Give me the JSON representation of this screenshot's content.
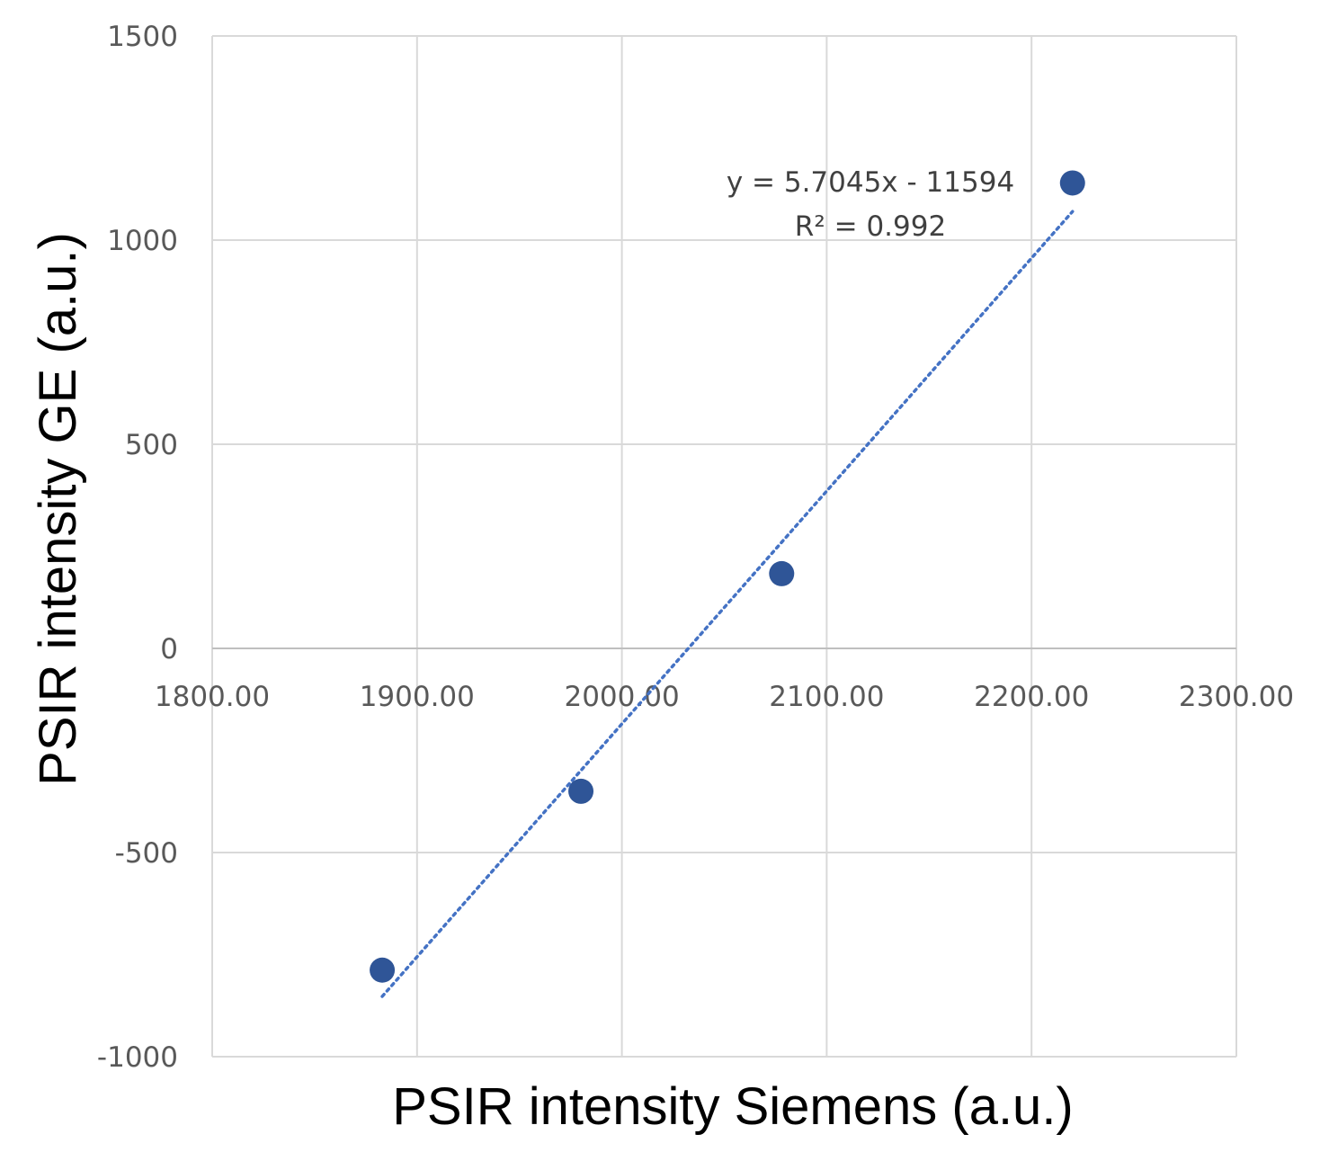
{
  "chart_data": {
    "type": "scatter",
    "title": "",
    "xlabel": "PSIR intensity Siemens (a.u.)",
    "ylabel": "PSIR intensity GE (a.u.)",
    "xlim": [
      1800,
      2300
    ],
    "ylim": [
      -1000,
      1500
    ],
    "x_ticks": [
      "1800.00",
      "1900.00",
      "2000.00",
      "2100.00",
      "2200.00",
      "2300.00"
    ],
    "y_ticks": [
      "-1000",
      "-500",
      "0",
      "500",
      "1000",
      "1500"
    ],
    "grid": true,
    "legend": "none",
    "series": [
      {
        "x": [
          1883,
          1980,
          2078,
          2220
        ],
        "y": [
          -788,
          -350,
          183,
          1140
        ],
        "color": "#2f5597"
      }
    ],
    "trendline": {
      "type": "linear",
      "slope": 5.7045,
      "intercept": -11594,
      "x_range": [
        1883,
        2220
      ],
      "style": "dotted",
      "color": "#4472c4",
      "equation_label": "y = 5.7045x - 11594",
      "r2_label": "R² = 0.992"
    }
  }
}
